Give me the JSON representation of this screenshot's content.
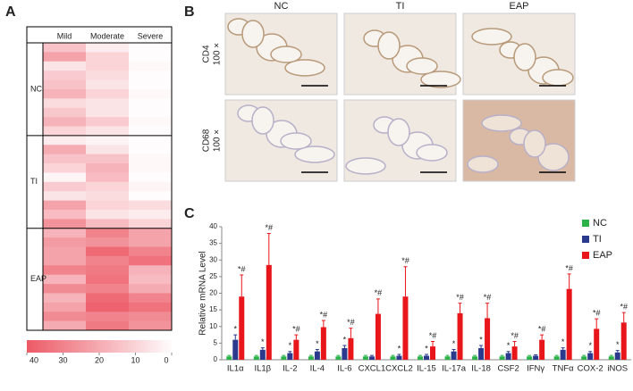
{
  "panel_labels": [
    "A",
    "B",
    "C"
  ],
  "micrographs": {
    "columns": [
      "NC",
      "TI",
      "EAP"
    ],
    "rows": [
      {
        "label": "CD4",
        "magnification": "100 ×"
      },
      {
        "label": "CD68",
        "magnification": "100 ×"
      }
    ]
  },
  "chart_data": [
    {
      "type": "heatmap",
      "columns": [
        "Mild",
        "Moderate",
        "Severe"
      ],
      "groups": [
        {
          "name": "NC",
          "values": [
            [
              14,
              4,
              0
            ],
            [
              22,
              10,
              0
            ],
            [
              6,
              10,
              1
            ],
            [
              12,
              8,
              0
            ],
            [
              14,
              6,
              0
            ],
            [
              18,
              10,
              1
            ],
            [
              8,
              6,
              0
            ],
            [
              13,
              6,
              0
            ],
            [
              18,
              12,
              1
            ],
            [
              10,
              6,
              0
            ]
          ]
        },
        {
          "name": "TI",
          "values": [
            [
              4,
              2,
              0
            ],
            [
              20,
              6,
              0
            ],
            [
              14,
              14,
              1
            ],
            [
              10,
              18,
              1
            ],
            [
              2,
              16,
              0
            ],
            [
              12,
              10,
              2
            ],
            [
              6,
              8,
              0
            ],
            [
              22,
              10,
              8
            ],
            [
              16,
              6,
              4
            ],
            [
              26,
              16,
              10
            ]
          ]
        },
        {
          "name": "EAP",
          "values": [
            [
              18,
              30,
              22
            ],
            [
              24,
              26,
              22
            ],
            [
              22,
              36,
              30
            ],
            [
              22,
              30,
              34
            ],
            [
              30,
              32,
              18
            ],
            [
              18,
              34,
              16
            ],
            [
              28,
              30,
              20
            ],
            [
              18,
              36,
              30
            ],
            [
              22,
              38,
              34
            ],
            [
              28,
              30,
              28
            ],
            [
              20,
              32,
              26
            ]
          ]
        }
      ],
      "colors": [
        "#fefcfd",
        "#ec5a66"
      ],
      "clim": [
        0,
        40
      ],
      "cticks": [
        40,
        30,
        20,
        10,
        0
      ]
    },
    {
      "type": "bar",
      "ylabel": "Relative mRNA Level",
      "categories": [
        "IL1α",
        "IL1β",
        "IL-2",
        "IL-4",
        "IL-6",
        "CXCL1",
        "CXCL2",
        "IL-15",
        "IL-17a",
        "IL-18",
        "CSF2",
        "IFNγ",
        "TNFα",
        "COX-2",
        "iNOS"
      ],
      "series": [
        {
          "name": "NC",
          "color": "#2bb34a",
          "values": [
            1,
            1,
            1,
            1,
            1,
            1,
            1,
            1,
            1,
            1,
            1,
            1,
            1,
            1,
            1
          ],
          "errors": [
            0.3,
            0.3,
            0.3,
            0.3,
            0.3,
            0.3,
            0.3,
            0.3,
            0.3,
            0.3,
            0.3,
            0.3,
            0.3,
            0.3,
            0.3
          ],
          "sig_labels": [
            null,
            null,
            null,
            null,
            null,
            null,
            null,
            null,
            null,
            null,
            null,
            null,
            null,
            null,
            null
          ]
        },
        {
          "name": "TI",
          "color": "#2b3a8c",
          "values": [
            6,
            3,
            2,
            2.5,
            3.5,
            1,
            1.2,
            1.2,
            2.5,
            3.5,
            2,
            1.2,
            3,
            2,
            2.2
          ],
          "errors": [
            1.5,
            0.6,
            0.5,
            0.6,
            0.8,
            0.3,
            0.4,
            0.4,
            0.6,
            0.8,
            0.5,
            0.3,
            0.6,
            0.5,
            0.6
          ],
          "sig_labels": [
            "*",
            "*",
            "*",
            "*",
            "*",
            null,
            "*",
            "*",
            "*",
            "*",
            "*",
            null,
            "*",
            "*",
            "*"
          ]
        },
        {
          "name": "EAP",
          "color": "#e8161b",
          "values": [
            19,
            28.5,
            6,
            9.8,
            6.5,
            13.8,
            19,
            4,
            14,
            12.5,
            4,
            6,
            21.3,
            9.3,
            11.2
          ],
          "errors": [
            6.5,
            9.5,
            1.5,
            2,
            3,
            4.5,
            9,
            1.5,
            3,
            4.5,
            1.5,
            1.5,
            4.5,
            3,
            3
          ],
          "sig_labels": [
            "*#",
            "*#",
            "*#",
            "*#",
            "*#",
            "*#",
            "*#",
            "*#",
            "*#",
            "*#",
            "*#",
            "*#",
            "*#",
            "*#",
            "*#"
          ]
        }
      ],
      "ylim": [
        0,
        40
      ],
      "yticks": [
        0,
        5,
        10,
        15,
        20,
        25,
        30,
        35,
        40
      ],
      "legend": "top-right"
    }
  ]
}
